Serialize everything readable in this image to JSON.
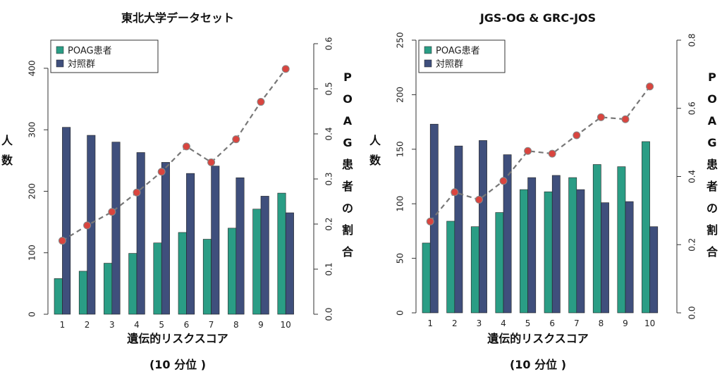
{
  "colors": {
    "poag": "#2a9d85",
    "control": "#3f4f7c",
    "line": "#777777",
    "point": "#d9453f"
  },
  "chart_data": [
    {
      "type": "bar",
      "title": "東北大学データセット",
      "categories": [
        "1",
        "2",
        "3",
        "4",
        "5",
        "6",
        "7",
        "8",
        "9",
        "10"
      ],
      "xlabel": "遺伝的リスクスコア",
      "xlabel2": "(10 分位 )",
      "ylabel": [
        "人",
        "数"
      ],
      "ylabel_right": [
        "P",
        "O",
        "A",
        "G",
        "患",
        "者",
        "の",
        "割",
        "合"
      ],
      "ylim": [
        0,
        440
      ],
      "yticks": [
        0,
        100,
        200,
        300,
        400
      ],
      "y2lim": [
        0,
        0.6
      ],
      "y2ticks": [
        "0.0",
        "0.1",
        "0.2",
        "0.3",
        "0.4",
        "0.5",
        "0.6"
      ],
      "legend": {
        "position": "top-left",
        "items": [
          "POAG患者",
          "対照群"
        ]
      },
      "series": [
        {
          "name": "POAG患者",
          "values": [
            58,
            70,
            83,
            99,
            116,
            133,
            122,
            140,
            171,
            197
          ]
        },
        {
          "name": "対照群",
          "values": [
            304,
            291,
            280,
            263,
            247,
            229,
            241,
            222,
            192,
            165
          ]
        }
      ],
      "ratio": [
        0.163,
        0.197,
        0.227,
        0.27,
        0.316,
        0.372,
        0.337,
        0.388,
        0.471,
        0.544
      ]
    },
    {
      "type": "bar",
      "title": "JGS-OG & GRC-JOS",
      "categories": [
        "1",
        "2",
        "3",
        "4",
        "5",
        "6",
        "7",
        "8",
        "9",
        "10"
      ],
      "xlabel": "遺伝的リスクスコア",
      "xlabel2": "(10 分位 )",
      "ylabel": [
        "人",
        "数"
      ],
      "ylabel_right": [
        "P",
        "O",
        "A",
        "G",
        "患",
        "者",
        "の",
        "割",
        "合"
      ],
      "ylim": [
        0,
        250
      ],
      "yticks": [
        0,
        50,
        100,
        150,
        200,
        250
      ],
      "y2lim": [
        0,
        0.8
      ],
      "y2ticks": [
        "0.0",
        "0.2",
        "0.4",
        "0.6",
        "0.8"
      ],
      "legend": {
        "position": "top-left",
        "items": [
          "POAG患者",
          "対照群"
        ]
      },
      "series": [
        {
          "name": "POAG患者",
          "values": [
            64,
            84,
            79,
            92,
            113,
            111,
            124,
            136,
            134,
            157
          ]
        },
        {
          "name": "対照群",
          "values": [
            173,
            153,
            158,
            145,
            124,
            126,
            113,
            101,
            102,
            79
          ]
        }
      ],
      "ratio": [
        0.268,
        0.354,
        0.332,
        0.387,
        0.475,
        0.467,
        0.521,
        0.574,
        0.568,
        0.664
      ]
    }
  ]
}
